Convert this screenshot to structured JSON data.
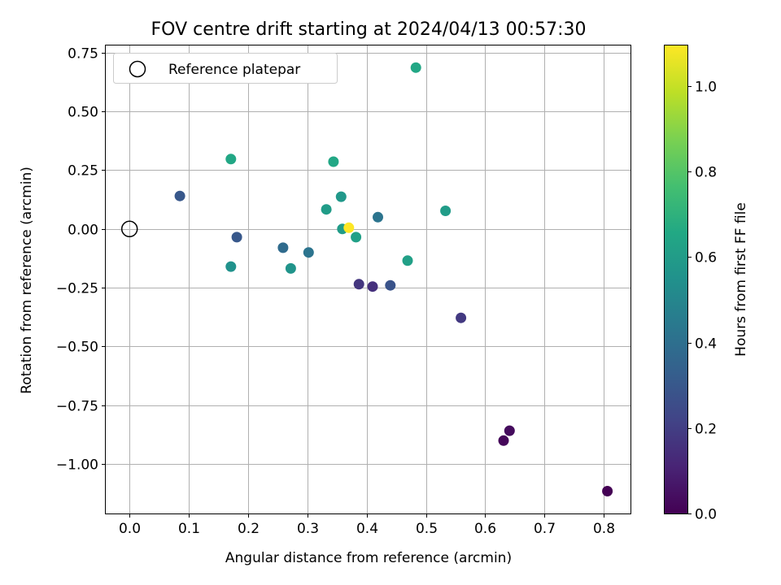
{
  "chart_data": {
    "type": "scatter",
    "title": "FOV centre drift starting at 2024/04/13 00:57:30",
    "xlabel": "Angular distance from reference (arcmin)",
    "ylabel": "Rotation from reference (arcmin)",
    "xlim": [
      -0.04,
      0.845
    ],
    "ylim": [
      -1.21,
      0.78
    ],
    "xticks": [
      0.0,
      0.1,
      0.2,
      0.3,
      0.4,
      0.5,
      0.6,
      0.7,
      0.8
    ],
    "xtick_labels": [
      "0.0",
      "0.1",
      "0.2",
      "0.3",
      "0.4",
      "0.5",
      "0.6",
      "0.7",
      "0.8"
    ],
    "yticks": [
      0.75,
      0.5,
      0.25,
      0.0,
      -0.25,
      -0.5,
      -0.75,
      -1.0
    ],
    "ytick_labels": [
      "0.75",
      "0.50",
      "0.25",
      "0.00",
      "−0.25",
      "−0.50",
      "−0.75",
      "−1.00"
    ],
    "grid": true,
    "legend": {
      "placement": "top-left",
      "entries": [
        {
          "label": "Reference platepar",
          "marker": "open-circle"
        }
      ]
    },
    "reference_point": {
      "x": 0.0,
      "y": 0.0
    },
    "colorbar": {
      "label": "Hours from first FF file",
      "colormap": "viridis",
      "range": [
        0.0,
        1.095
      ],
      "ticks": [
        0.0,
        0.2,
        0.4,
        0.6,
        0.8,
        1.0
      ],
      "tick_labels": [
        "0.0",
        "0.2",
        "0.4",
        "0.6",
        "0.8",
        "1.0"
      ]
    },
    "points": [
      {
        "x": 0.806,
        "y": -1.115,
        "c": 0.0
      },
      {
        "x": 0.631,
        "y": -0.9,
        "c": 0.02
      },
      {
        "x": 0.641,
        "y": -0.858,
        "c": 0.03
      },
      {
        "x": 0.559,
        "y": -0.378,
        "c": 0.18
      },
      {
        "x": 0.41,
        "y": -0.245,
        "c": 0.15
      },
      {
        "x": 0.387,
        "y": -0.235,
        "c": 0.17
      },
      {
        "x": 0.44,
        "y": -0.24,
        "c": 0.28
      },
      {
        "x": 0.085,
        "y": 0.14,
        "c": 0.3
      },
      {
        "x": 0.181,
        "y": -0.035,
        "c": 0.3
      },
      {
        "x": 0.259,
        "y": -0.08,
        "c": 0.38
      },
      {
        "x": 0.302,
        "y": -0.1,
        "c": 0.42
      },
      {
        "x": 0.419,
        "y": 0.05,
        "c": 0.42
      },
      {
        "x": 0.171,
        "y": -0.16,
        "c": 0.55
      },
      {
        "x": 0.272,
        "y": -0.168,
        "c": 0.56
      },
      {
        "x": 0.357,
        "y": 0.137,
        "c": 0.58
      },
      {
        "x": 0.332,
        "y": 0.083,
        "c": 0.6
      },
      {
        "x": 0.359,
        "y": 0.0,
        "c": 0.6
      },
      {
        "x": 0.382,
        "y": -0.035,
        "c": 0.62
      },
      {
        "x": 0.469,
        "y": -0.135,
        "c": 0.62
      },
      {
        "x": 0.533,
        "y": 0.077,
        "c": 0.6
      },
      {
        "x": 0.171,
        "y": 0.297,
        "c": 0.65
      },
      {
        "x": 0.344,
        "y": 0.286,
        "c": 0.65
      },
      {
        "x": 0.483,
        "y": 0.686,
        "c": 0.65
      },
      {
        "x": 0.37,
        "y": 0.005,
        "c": 1.095
      }
    ]
  }
}
